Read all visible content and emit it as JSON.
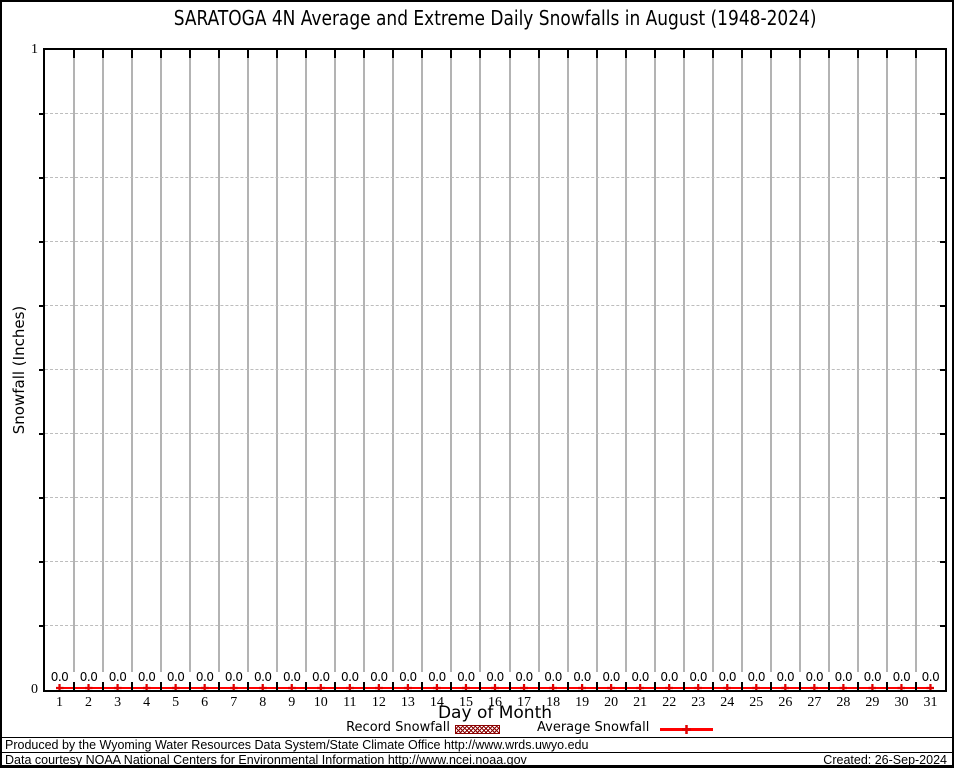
{
  "title": "SARATOGA 4N Average and Extreme Daily Snowfalls in August (1948-2024)",
  "axes": {
    "y_label": "Snowfall (Inches)",
    "x_label": "Day of Month",
    "y_max_label": "1",
    "y_min_label": "0"
  },
  "chart_data": {
    "type": "line",
    "title": "SARATOGA 4N Average and Extreme Daily Snowfalls in August (1948-2024)",
    "xlabel": "Day of Month",
    "ylabel": "Snowfall (Inches)",
    "ylim": [
      0,
      1
    ],
    "ytick_interval": 0.1,
    "categories": [
      "1",
      "2",
      "3",
      "4",
      "5",
      "6",
      "7",
      "8",
      "9",
      "10",
      "11",
      "12",
      "13",
      "14",
      "15",
      "16",
      "17",
      "18",
      "19",
      "20",
      "21",
      "22",
      "23",
      "24",
      "25",
      "26",
      "27",
      "28",
      "29",
      "30",
      "31"
    ],
    "series": [
      {
        "name": "Record Snowfall",
        "style": "crosshatch-bar",
        "color": "#8b0000",
        "values": [
          0,
          0,
          0,
          0,
          0,
          0,
          0,
          0,
          0,
          0,
          0,
          0,
          0,
          0,
          0,
          0,
          0,
          0,
          0,
          0,
          0,
          0,
          0,
          0,
          0,
          0,
          0,
          0,
          0,
          0,
          0
        ]
      },
      {
        "name": "Average Snowfall",
        "style": "line-with-markers",
        "color": "#ff0000",
        "values": [
          0,
          0,
          0,
          0,
          0,
          0,
          0,
          0,
          0,
          0,
          0,
          0,
          0,
          0,
          0,
          0,
          0,
          0,
          0,
          0,
          0,
          0,
          0,
          0,
          0,
          0,
          0,
          0,
          0,
          0,
          0
        ]
      }
    ],
    "value_labels": [
      "0.0",
      "0.0",
      "0.0",
      "0.0",
      "0.0",
      "0.0",
      "0.0",
      "0.0",
      "0.0",
      "0.0",
      "0.0",
      "0.0",
      "0.0",
      "0.0",
      "0.0",
      "0.0",
      "0.0",
      "0.0",
      "0.0",
      "0.0",
      "0.0",
      "0.0",
      "0.0",
      "0.0",
      "0.0",
      "0.0",
      "0.0",
      "0.0",
      "0.0",
      "0.0",
      "0.0"
    ],
    "grid": {
      "vertical": "solid gray at day boundaries",
      "horizontal": "dashed gray every 0.1"
    },
    "legend_position": "bottom"
  },
  "legend": [
    {
      "label": "Record Snowfall",
      "swatch": "crosshatch",
      "color": "#8b0000"
    },
    {
      "label": "Average Snowfall",
      "swatch": "line-marker",
      "color": "#ff0000"
    }
  ],
  "footer": {
    "line1": "Produced by the Wyoming Water Resources Data System/State Climate Office http://www.wrds.uwyo.edu",
    "line2": "Data courtesy NOAA National Centers for Environmental Information http://www.ncei.noaa.gov",
    "created": "Created: 26-Sep-2024"
  },
  "colors": {
    "average_line": "#ff0000",
    "marker": "#e00000",
    "record_pattern": "#8b0000",
    "grid": "#b3b3b3",
    "axis": "#000000"
  }
}
